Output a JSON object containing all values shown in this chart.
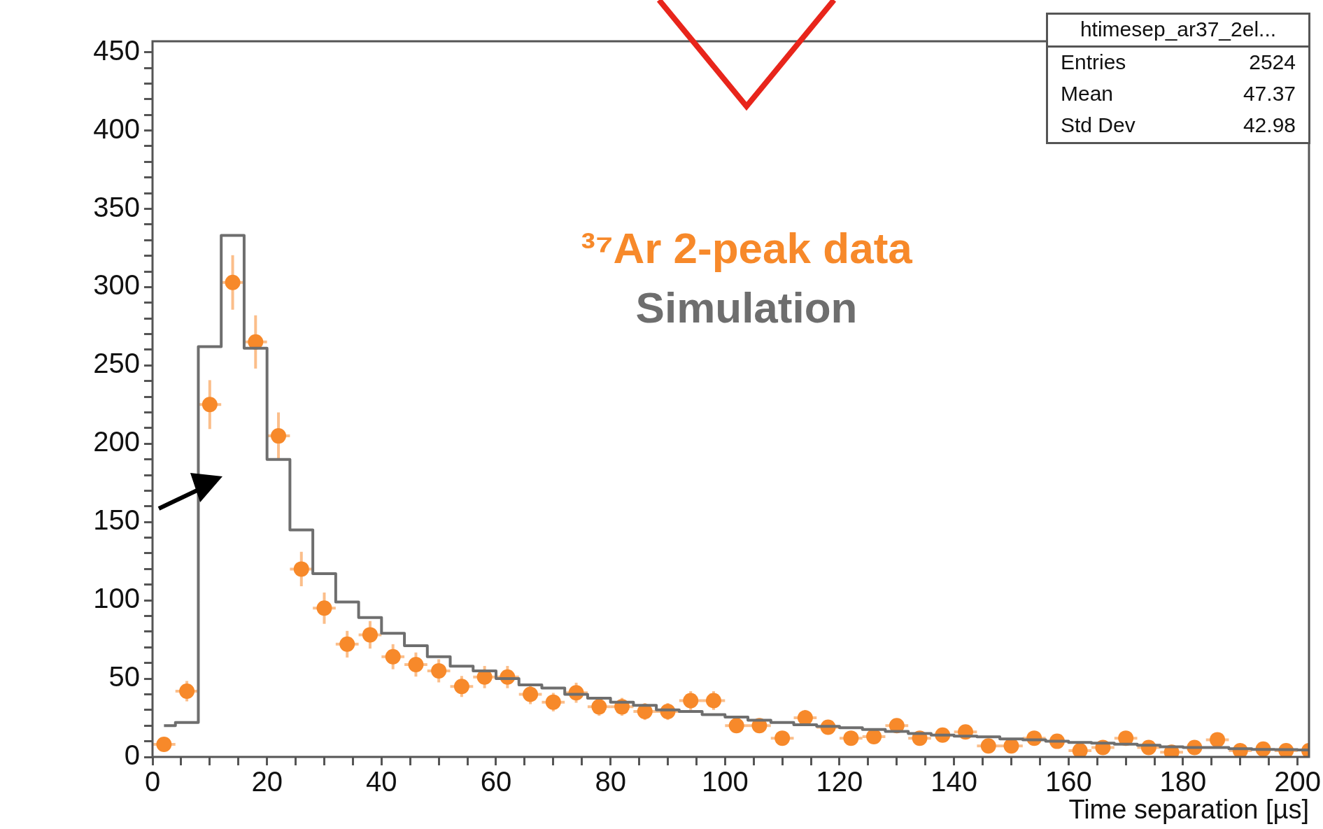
{
  "chart_data": {
    "type": "scatter",
    "xlabel": "Time separation [µs]",
    "xlim": [
      0,
      202
    ],
    "ylim": [
      0,
      457
    ],
    "xticks": [
      0,
      {
        "value": 5,
        "label": null
      },
      {
        "value": 10,
        "label": null
      },
      {
        "value": 15,
        "label": null
      },
      20,
      {
        "value": 25,
        "label": null
      },
      {
        "value": 30,
        "label": null
      },
      {
        "value": 35,
        "label": null
      },
      40,
      {
        "value": 45,
        "label": null
      },
      {
        "value": 50,
        "label": null
      },
      {
        "value": 55,
        "label": null
      },
      60,
      {
        "value": 65,
        "label": null
      },
      {
        "value": 70,
        "label": null
      },
      {
        "value": 75,
        "label": null
      },
      80,
      {
        "value": 85,
        "label": null
      },
      {
        "value": 90,
        "label": null
      },
      {
        "value": 95,
        "label": null
      },
      100,
      {
        "value": 105,
        "label": null
      },
      {
        "value": 110,
        "label": null
      },
      {
        "value": 115,
        "label": null
      },
      120,
      {
        "value": 125,
        "label": null
      },
      {
        "value": 130,
        "label": null
      },
      {
        "value": 135,
        "label": null
      },
      140,
      {
        "value": 145,
        "label": null
      },
      {
        "value": 150,
        "label": null
      },
      {
        "value": 155,
        "label": null
      },
      160,
      {
        "value": 165,
        "label": null
      },
      {
        "value": 170,
        "label": null
      },
      {
        "value": 175,
        "label": null
      },
      180,
      {
        "value": 185,
        "label": null
      },
      {
        "value": 190,
        "label": null
      },
      {
        "value": 195,
        "label": null
      },
      200
    ],
    "yticks": [
      0,
      {
        "value": 10,
        "label": null
      },
      {
        "value": 20,
        "label": null
      },
      {
        "value": 30,
        "label": null
      },
      {
        "value": 40,
        "label": null
      },
      50,
      {
        "value": 60,
        "label": null
      },
      {
        "value": 70,
        "label": null
      },
      {
        "value": 80,
        "label": null
      },
      {
        "value": 90,
        "label": null
      },
      100,
      {
        "value": 110,
        "label": null
      },
      {
        "value": 120,
        "label": null
      },
      {
        "value": 130,
        "label": null
      },
      {
        "value": 140,
        "label": null
      },
      150,
      {
        "value": 160,
        "label": null
      },
      {
        "value": 170,
        "label": null
      },
      {
        "value": 180,
        "label": null
      },
      {
        "value": 190,
        "label": null
      },
      200,
      {
        "value": 210,
        "label": null
      },
      {
        "value": 220,
        "label": null
      },
      {
        "value": 230,
        "label": null
      },
      {
        "value": 240,
        "label": null
      },
      250,
      {
        "value": 260,
        "label": null
      },
      {
        "value": 270,
        "label": null
      },
      {
        "value": 280,
        "label": null
      },
      {
        "value": 290,
        "label": null
      },
      300,
      {
        "value": 310,
        "label": null
      },
      {
        "value": 320,
        "label": null
      },
      {
        "value": 330,
        "label": null
      },
      {
        "value": 340,
        "label": null
      },
      350,
      {
        "value": 360,
        "label": null
      },
      {
        "value": 370,
        "label": null
      },
      {
        "value": 380,
        "label": null
      },
      {
        "value": 390,
        "label": null
      },
      400,
      {
        "value": 410,
        "label": null
      },
      {
        "value": 420,
        "label": null
      },
      {
        "value": 430,
        "label": null
      },
      {
        "value": 440,
        "label": null
      },
      450
    ],
    "series": [
      {
        "name": "³⁷Ar 2-peak data",
        "color": "#f7892a",
        "marker": "circle",
        "x": [
          2,
          6,
          10,
          14,
          18,
          22,
          26,
          30,
          34,
          38,
          42,
          46,
          50,
          54,
          58,
          62,
          66,
          70,
          74,
          78,
          82,
          86,
          90,
          94,
          98,
          102,
          106,
          110,
          114,
          118,
          122,
          126,
          130,
          134,
          138,
          142,
          146,
          150,
          154,
          158,
          162,
          166,
          170,
          174,
          178,
          182,
          186,
          190,
          194,
          198,
          202
        ],
        "values": [
          8,
          42,
          225,
          303,
          265,
          205,
          120,
          95,
          72,
          78,
          64,
          59,
          55,
          45,
          51,
          51,
          40,
          35,
          41,
          32,
          32,
          29,
          29,
          36,
          36,
          20,
          20,
          12,
          25,
          19,
          12,
          13,
          20,
          12,
          14,
          16,
          7,
          7,
          12,
          10,
          4,
          6,
          12,
          6,
          3,
          6,
          11,
          4,
          5,
          4,
          4
        ],
        "errors": [
          3,
          6.5,
          15.6,
          17.4,
          17,
          15,
          11,
          10,
          8.5,
          8.8,
          8,
          7.7,
          7.4,
          6.7,
          7.1,
          7.1,
          6.3,
          5.9,
          6.4,
          5.7,
          5.7,
          5.4,
          5.4,
          6,
          6,
          4.5,
          4.5,
          3.5,
          5,
          4.4,
          3.5,
          3.6,
          4.5,
          3.5,
          3.7,
          4,
          2.6,
          2.6,
          3.5,
          3.2,
          2,
          2.4,
          3.5,
          2.4,
          1.7,
          2.4,
          3.3,
          2,
          2.2,
          2,
          null
        ],
        "xerrors": [
          2,
          2,
          2,
          2,
          2,
          2,
          2,
          2,
          2,
          2,
          2,
          2,
          2,
          2,
          2,
          2,
          2,
          2,
          2,
          2,
          2,
          2,
          2,
          2,
          2,
          2,
          2,
          2,
          2,
          2,
          2,
          2,
          2,
          2,
          null,
          2,
          2,
          2,
          2,
          null,
          2,
          2,
          2,
          2,
          2,
          null,
          2,
          2,
          null,
          2,
          null
        ]
      },
      {
        "name": "Simulation",
        "type": "step",
        "color": "#6e6e6e",
        "marker": "none",
        "x": [
          2,
          6,
          10,
          14,
          18,
          22,
          26,
          30,
          34,
          38,
          42,
          46,
          50,
          54,
          58,
          62,
          66,
          70,
          74,
          78,
          82,
          86,
          90,
          94,
          98,
          102,
          106,
          110,
          114,
          118,
          122,
          126,
          130,
          134,
          138,
          142,
          146,
          150,
          154,
          158,
          162,
          166,
          170,
          174,
          178,
          182,
          186,
          190,
          194,
          198,
          202
        ],
        "values": [
          20,
          22,
          262,
          333,
          261,
          190,
          145,
          117,
          99,
          89,
          79,
          71,
          64,
          58,
          55,
          50,
          46,
          44,
          40,
          37.5,
          35,
          33,
          30,
          29,
          27,
          25.5,
          23.5,
          22,
          20.5,
          19.5,
          18.7,
          17.5,
          16.3,
          15,
          14,
          13.3,
          12.8,
          11.5,
          11,
          10,
          9.3,
          8.8,
          8.2,
          7.5,
          6.5,
          6,
          6,
          5.2,
          4.8,
          4.7,
          4.5
        ]
      }
    ],
    "annotations": [
      "htimesep_ar37_2el...",
      "Entries 2524",
      "Mean 47.37",
      "Std Dev 42.98"
    ]
  }
}
